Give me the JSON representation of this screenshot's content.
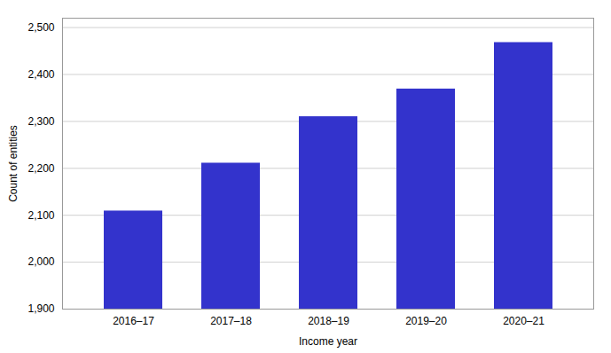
{
  "chart_data": {
    "type": "bar",
    "categories": [
      "2016–17",
      "2017–18",
      "2018–19",
      "2019–20",
      "2020–21"
    ],
    "values": [
      2109,
      2211,
      2310,
      2369,
      2468
    ],
    "color": "#3333cc",
    "xlabel": "Income year",
    "ylabel": "Count of entities",
    "ylim": [
      1900,
      2520
    ],
    "yticks": [
      {
        "value": 1900,
        "label": "1,900"
      },
      {
        "value": 2000,
        "label": "2,000"
      },
      {
        "value": 2100,
        "label": "2,100"
      },
      {
        "value": 2200,
        "label": "2,200"
      },
      {
        "value": 2300,
        "label": "2,300"
      },
      {
        "value": 2400,
        "label": "2,400"
      },
      {
        "value": 2500,
        "label": "2,500"
      }
    ],
    "grid": true
  }
}
